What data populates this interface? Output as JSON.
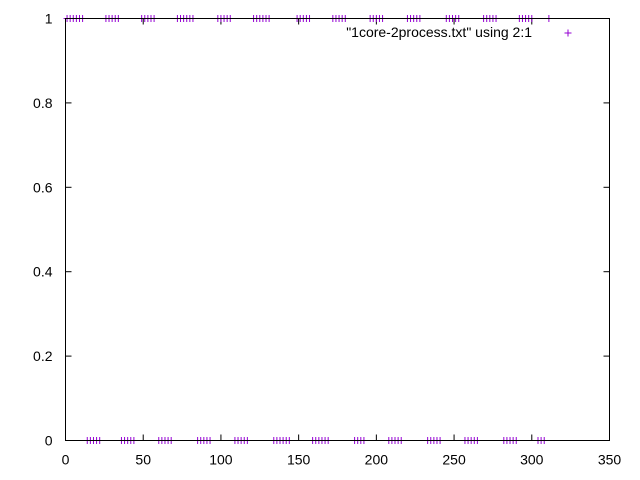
{
  "chart_data": {
    "type": "scatter",
    "title": "",
    "xlabel": "",
    "ylabel": "",
    "xlim": [
      0,
      350
    ],
    "ylim": [
      0,
      1
    ],
    "x_ticks": [
      0,
      50,
      100,
      150,
      200,
      250,
      300,
      350
    ],
    "y_ticks": [
      0,
      0.2,
      0.4,
      0.6,
      0.8,
      1
    ],
    "x_tick_labels": [
      "0",
      "50",
      "100",
      "150",
      "200",
      "250",
      "300",
      "350"
    ],
    "y_tick_labels": [
      "0",
      "0.2",
      "0.4",
      "0.6",
      "0.8",
      "1"
    ],
    "grid": false,
    "legend_position": "top-right",
    "marker": "+",
    "color": "#9400d3",
    "series": [
      {
        "name": "\"1core-2process.txt\" using 2:1",
        "points": [
          {
            "x": 1,
            "y": 1
          },
          {
            "x": 3,
            "y": 1
          },
          {
            "x": 5,
            "y": 1
          },
          {
            "x": 7,
            "y": 1
          },
          {
            "x": 9,
            "y": 1
          },
          {
            "x": 11,
            "y": 1
          },
          {
            "x": 26,
            "y": 1
          },
          {
            "x": 28,
            "y": 1
          },
          {
            "x": 30,
            "y": 1
          },
          {
            "x": 32,
            "y": 1
          },
          {
            "x": 34,
            "y": 1
          },
          {
            "x": 49,
            "y": 1
          },
          {
            "x": 51,
            "y": 1
          },
          {
            "x": 53,
            "y": 1
          },
          {
            "x": 55,
            "y": 1
          },
          {
            "x": 57,
            "y": 1
          },
          {
            "x": 72,
            "y": 1
          },
          {
            "x": 74,
            "y": 1
          },
          {
            "x": 76,
            "y": 1
          },
          {
            "x": 78,
            "y": 1
          },
          {
            "x": 80,
            "y": 1
          },
          {
            "x": 82,
            "y": 1
          },
          {
            "x": 98,
            "y": 1
          },
          {
            "x": 100,
            "y": 1
          },
          {
            "x": 102,
            "y": 1
          },
          {
            "x": 104,
            "y": 1
          },
          {
            "x": 106,
            "y": 1
          },
          {
            "x": 121,
            "y": 1
          },
          {
            "x": 123,
            "y": 1
          },
          {
            "x": 125,
            "y": 1
          },
          {
            "x": 127,
            "y": 1
          },
          {
            "x": 129,
            "y": 1
          },
          {
            "x": 131,
            "y": 1
          },
          {
            "x": 149,
            "y": 1
          },
          {
            "x": 151,
            "y": 1
          },
          {
            "x": 153,
            "y": 1
          },
          {
            "x": 155,
            "y": 1
          },
          {
            "x": 157,
            "y": 1
          },
          {
            "x": 172,
            "y": 1
          },
          {
            "x": 174,
            "y": 1
          },
          {
            "x": 176,
            "y": 1
          },
          {
            "x": 178,
            "y": 1
          },
          {
            "x": 180,
            "y": 1
          },
          {
            "x": 196,
            "y": 1
          },
          {
            "x": 198,
            "y": 1
          },
          {
            "x": 200,
            "y": 1
          },
          {
            "x": 202,
            "y": 1
          },
          {
            "x": 204,
            "y": 1
          },
          {
            "x": 220,
            "y": 1
          },
          {
            "x": 222,
            "y": 1
          },
          {
            "x": 224,
            "y": 1
          },
          {
            "x": 226,
            "y": 1
          },
          {
            "x": 228,
            "y": 1
          },
          {
            "x": 245,
            "y": 1
          },
          {
            "x": 247,
            "y": 1
          },
          {
            "x": 249,
            "y": 1
          },
          {
            "x": 251,
            "y": 1
          },
          {
            "x": 253,
            "y": 1
          },
          {
            "x": 269,
            "y": 1
          },
          {
            "x": 271,
            "y": 1
          },
          {
            "x": 273,
            "y": 1
          },
          {
            "x": 275,
            "y": 1
          },
          {
            "x": 277,
            "y": 1
          },
          {
            "x": 292,
            "y": 1
          },
          {
            "x": 294,
            "y": 1
          },
          {
            "x": 296,
            "y": 1
          },
          {
            "x": 298,
            "y": 1
          },
          {
            "x": 300,
            "y": 1
          },
          {
            "x": 311,
            "y": 1
          },
          {
            "x": 14,
            "y": 0
          },
          {
            "x": 16,
            "y": 0
          },
          {
            "x": 18,
            "y": 0
          },
          {
            "x": 20,
            "y": 0
          },
          {
            "x": 22,
            "y": 0
          },
          {
            "x": 36,
            "y": 0
          },
          {
            "x": 38,
            "y": 0
          },
          {
            "x": 40,
            "y": 0
          },
          {
            "x": 42,
            "y": 0
          },
          {
            "x": 44,
            "y": 0
          },
          {
            "x": 60,
            "y": 0
          },
          {
            "x": 62,
            "y": 0
          },
          {
            "x": 64,
            "y": 0
          },
          {
            "x": 66,
            "y": 0
          },
          {
            "x": 68,
            "y": 0
          },
          {
            "x": 85,
            "y": 0
          },
          {
            "x": 87,
            "y": 0
          },
          {
            "x": 89,
            "y": 0
          },
          {
            "x": 91,
            "y": 0
          },
          {
            "x": 93,
            "y": 0
          },
          {
            "x": 109,
            "y": 0
          },
          {
            "x": 111,
            "y": 0
          },
          {
            "x": 113,
            "y": 0
          },
          {
            "x": 115,
            "y": 0
          },
          {
            "x": 117,
            "y": 0
          },
          {
            "x": 134,
            "y": 0
          },
          {
            "x": 136,
            "y": 0
          },
          {
            "x": 138,
            "y": 0
          },
          {
            "x": 140,
            "y": 0
          },
          {
            "x": 142,
            "y": 0
          },
          {
            "x": 144,
            "y": 0
          },
          {
            "x": 159,
            "y": 0
          },
          {
            "x": 161,
            "y": 0
          },
          {
            "x": 163,
            "y": 0
          },
          {
            "x": 165,
            "y": 0
          },
          {
            "x": 167,
            "y": 0
          },
          {
            "x": 169,
            "y": 0
          },
          {
            "x": 186,
            "y": 0
          },
          {
            "x": 188,
            "y": 0
          },
          {
            "x": 190,
            "y": 0
          },
          {
            "x": 192,
            "y": 0
          },
          {
            "x": 208,
            "y": 0
          },
          {
            "x": 210,
            "y": 0
          },
          {
            "x": 212,
            "y": 0
          },
          {
            "x": 214,
            "y": 0
          },
          {
            "x": 216,
            "y": 0
          },
          {
            "x": 233,
            "y": 0
          },
          {
            "x": 235,
            "y": 0
          },
          {
            "x": 237,
            "y": 0
          },
          {
            "x": 239,
            "y": 0
          },
          {
            "x": 241,
            "y": 0
          },
          {
            "x": 257,
            "y": 0
          },
          {
            "x": 259,
            "y": 0
          },
          {
            "x": 261,
            "y": 0
          },
          {
            "x": 263,
            "y": 0
          },
          {
            "x": 265,
            "y": 0
          },
          {
            "x": 282,
            "y": 0
          },
          {
            "x": 284,
            "y": 0
          },
          {
            "x": 286,
            "y": 0
          },
          {
            "x": 288,
            "y": 0
          },
          {
            "x": 290,
            "y": 0
          },
          {
            "x": 304,
            "y": 0
          },
          {
            "x": 306,
            "y": 0
          },
          {
            "x": 308,
            "y": 0
          }
        ]
      }
    ]
  }
}
